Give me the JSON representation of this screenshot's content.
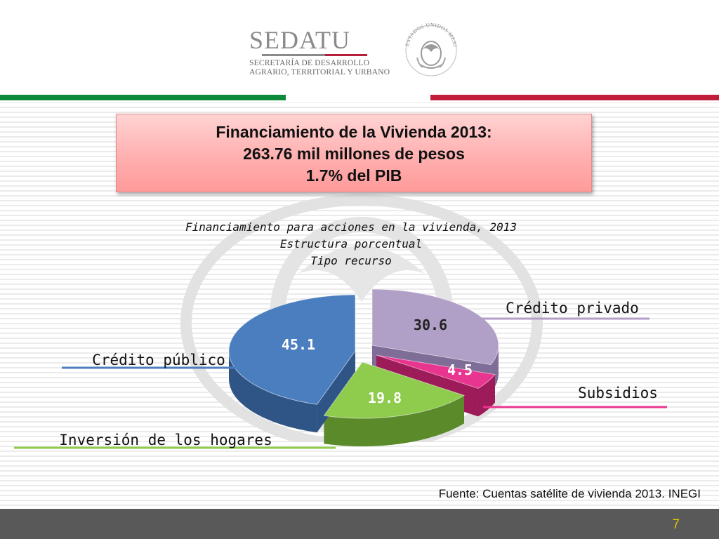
{
  "header": {
    "org_name": "SEDATU",
    "org_subtitle_1": "SECRETARÍA DE DESARROLLO",
    "org_subtitle_2": "AGRARIO, TERRITORIAL Y URBANO",
    "seal_text": "ESTADOS UNIDOS MEXICANOS",
    "seal_icon": "mexican-coat-of-arms-seal-icon"
  },
  "title_box": {
    "line1": "Financiamiento de la Vivienda 2013:",
    "line2": "263.76 mil millones de pesos",
    "line3": "1.7%  del PIB",
    "background": "#ffb0b0"
  },
  "chart_data": {
    "type": "pie",
    "title": "Financiamiento para acciones en la vivienda, 2013",
    "subtitle_1": "Estructura porcentual",
    "subtitle_2": "Tipo recurso",
    "slices": [
      {
        "label": "Crédito privado",
        "value": 30.6,
        "value_label": "30.6",
        "color": "#b09fc6",
        "dark": "#7e6d96"
      },
      {
        "label": "Subsidios",
        "value": 4.5,
        "value_label": "4.5",
        "color": "#e8358f",
        "dark": "#9c1b58"
      },
      {
        "label": "Inversión de los hogares",
        "value": 19.8,
        "value_label": "19.8",
        "color": "#8fcb4c",
        "dark": "#5a8a2a"
      },
      {
        "label": "Crédito público",
        "value": 45.1,
        "value_label": "45.1",
        "color": "#4a7ebf",
        "dark": "#2f5586"
      }
    ],
    "legend_placement": "around"
  },
  "source": "Fuente: Cuentas satélite de vivienda 2013. INEGI",
  "page_number": "7",
  "colors": {
    "green_stripe": "#0c8a3a",
    "red_stripe": "#c01d3a",
    "footer": "#595959",
    "page_number": "#e0c400"
  }
}
